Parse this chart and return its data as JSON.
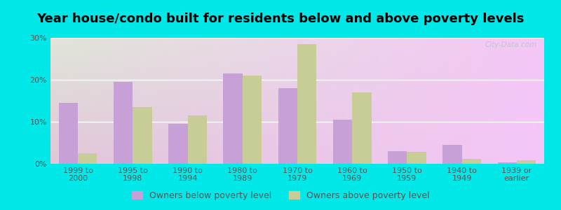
{
  "title": "Year house/condo built for residents below and above poverty levels",
  "categories": [
    "1999 to\n2000",
    "1995 to\n1998",
    "1990 to\n1994",
    "1980 to\n1989",
    "1970 to\n1979",
    "1960 to\n1969",
    "1950 to\n1959",
    "1940 to\n1949",
    "1939 or\nearlier"
  ],
  "below_poverty": [
    14.5,
    19.5,
    9.5,
    21.5,
    18.0,
    10.5,
    3.0,
    4.5,
    0.3
  ],
  "above_poverty": [
    2.5,
    13.5,
    11.5,
    21.0,
    28.5,
    17.0,
    2.8,
    1.2,
    0.8
  ],
  "below_color": "#c8a0d8",
  "above_color": "#c8cc96",
  "background_outer": "#00e8e8",
  "ylim": [
    0,
    30
  ],
  "yticks": [
    0,
    10,
    20,
    30
  ],
  "ytick_labels": [
    "0%",
    "10%",
    "20%",
    "30%"
  ],
  "legend_below_label": "Owners below poverty level",
  "legend_above_label": "Owners above poverty level",
  "title_fontsize": 13,
  "tick_fontsize": 8,
  "legend_fontsize": 9,
  "bar_width": 0.35,
  "grid_color": "#d0e8d0",
  "watermark": "City-Data.com"
}
